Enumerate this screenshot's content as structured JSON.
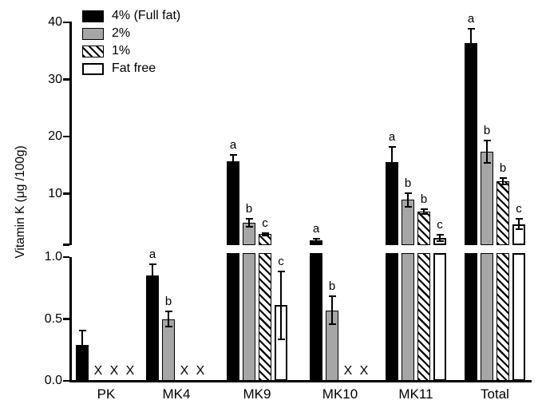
{
  "chart_data": {
    "type": "bar",
    "title": "",
    "ylabel": "Vitamin K (μg /100g)",
    "categories": [
      "PK",
      "MK4",
      "MK9",
      "MK10",
      "MK11",
      "Total"
    ],
    "axis": {
      "broken": true,
      "upper_panel": {
        "min": 1.0,
        "max": 40,
        "ticks": [
          10,
          20,
          30,
          40
        ],
        "tick_labels": [
          "10",
          "20",
          "30",
          "40"
        ]
      },
      "lower_panel": {
        "min": 0.0,
        "max": 1.0,
        "ticks": [
          0.0,
          0.5,
          1.0
        ],
        "tick_labels": [
          "0.0",
          "0.5",
          "1.0"
        ]
      },
      "grid": false
    },
    "legend_position": "top-left-inside",
    "not_detected_marker": "X",
    "series": [
      {
        "name": "4% (Full fat)",
        "style": "black",
        "values": [
          0.29,
          0.85,
          15.7,
          1.8,
          15.5,
          36.3
        ],
        "errors": [
          0.12,
          0.1,
          1.3,
          0.5,
          2.8,
          2.7
        ],
        "letters": [
          "",
          "a",
          "a",
          "a",
          "a",
          "a"
        ]
      },
      {
        "name": "2%",
        "style": "gray",
        "values": [
          null,
          0.5,
          4.9,
          0.57,
          8.9,
          17.3
        ],
        "errors": [
          null,
          0.07,
          0.8,
          0.12,
          1.3,
          2.1
        ],
        "letters": [
          "",
          "b",
          "b",
          "b",
          "b",
          "b"
        ]
      },
      {
        "name": "1%",
        "style": "hatched",
        "values": [
          null,
          null,
          2.9,
          null,
          6.9,
          12.2
        ],
        "errors": [
          null,
          null,
          0.4,
          null,
          0.6,
          0.7
        ],
        "letters": [
          "",
          "",
          "c",
          "",
          "b",
          "b"
        ]
      },
      {
        "name": "Fat free",
        "style": "white",
        "values": [
          null,
          null,
          0.61,
          null,
          2.3,
          4.7
        ],
        "errors": [
          null,
          null,
          0.28,
          null,
          0.7,
          1.1
        ],
        "letters": [
          "",
          "",
          "c",
          "",
          "c",
          "c"
        ]
      }
    ],
    "colors": {
      "bar_black": "#000000",
      "bar_gray": "#a6a6a6",
      "bar_white": "#ffffff",
      "hatch_foreground": "#000000",
      "axis": "#000000",
      "text": "#000000",
      "background": "#ffffff"
    }
  }
}
